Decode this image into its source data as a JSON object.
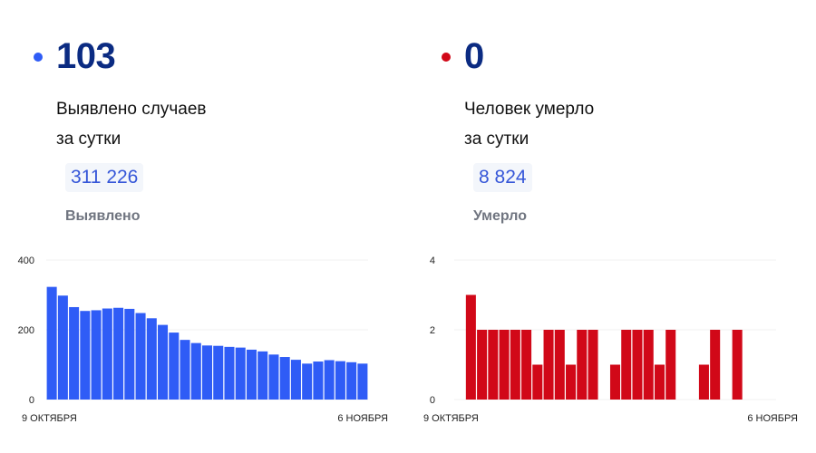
{
  "cases": {
    "value": "103",
    "subtitle_line1": "Выявлено случаев",
    "subtitle_line2": "за сутки",
    "total": "311 226",
    "total_label": "Выявлено",
    "color": "#2f5cf6"
  },
  "deaths": {
    "value": "0",
    "subtitle_line1": "Человек умерло",
    "subtitle_line2": "за сутки",
    "total": "8 824",
    "total_label": "Умерло",
    "color": "#d10818"
  },
  "chart_data": [
    {
      "type": "bar",
      "x_start_label": "9 ОКТЯБРЯ",
      "x_end_label": "6 НОЯБРЯ",
      "yticks": [
        "0",
        "200",
        "400"
      ],
      "ylim": [
        0,
        400
      ],
      "grid": true,
      "color": "#2f5cf6",
      "values": [
        323,
        298,
        265,
        254,
        256,
        261,
        263,
        260,
        248,
        233,
        214,
        192,
        171,
        162,
        155,
        154,
        151,
        149,
        143,
        138,
        129,
        122,
        114,
        103,
        109,
        113,
        110,
        107,
        103
      ]
    },
    {
      "type": "bar",
      "x_start_label": "9 ОКТЯБРЯ",
      "x_end_label": "6 НОЯБРЯ",
      "yticks": [
        "0",
        "2",
        "4"
      ],
      "ylim": [
        0,
        4
      ],
      "grid": true,
      "color": "#d10818",
      "values": [
        0,
        3,
        2,
        2,
        2,
        2,
        2,
        1,
        2,
        2,
        1,
        2,
        2,
        0,
        1,
        2,
        2,
        2,
        1,
        2,
        0,
        0,
        1,
        2,
        0,
        2,
        0,
        0,
        0
      ]
    }
  ]
}
